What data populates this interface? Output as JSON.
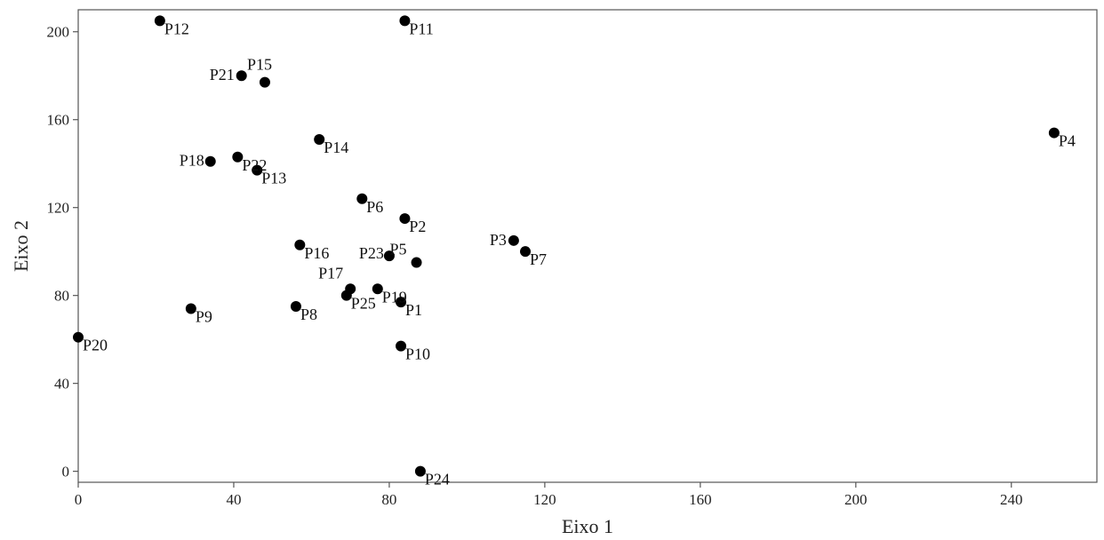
{
  "chart_data": {
    "type": "scatter",
    "xlabel": "Eixo 1",
    "ylabel": "Eixo 2",
    "xlim": [
      0,
      262
    ],
    "ylim": [
      -5,
      210
    ],
    "xticks": [
      0,
      40,
      80,
      120,
      160,
      200,
      240
    ],
    "yticks": [
      0,
      40,
      80,
      120,
      160,
      200
    ],
    "grid": false,
    "legend": "none",
    "marker_color": "#000000",
    "points": [
      {
        "label": "P1",
        "x": 83,
        "y": 77
      },
      {
        "label": "P2",
        "x": 84,
        "y": 115
      },
      {
        "label": "P3",
        "x": 112,
        "y": 105
      },
      {
        "label": "P4",
        "x": 251,
        "y": 154
      },
      {
        "label": "P5",
        "x": 87,
        "y": 95
      },
      {
        "label": "P6",
        "x": 73,
        "y": 124
      },
      {
        "label": "P7",
        "x": 115,
        "y": 100
      },
      {
        "label": "P8",
        "x": 56,
        "y": 75
      },
      {
        "label": "P9",
        "x": 29,
        "y": 74
      },
      {
        "label": "P10",
        "x": 83,
        "y": 57
      },
      {
        "label": "P11",
        "x": 84,
        "y": 205
      },
      {
        "label": "P12",
        "x": 21,
        "y": 205
      },
      {
        "label": "P13",
        "x": 46,
        "y": 137
      },
      {
        "label": "P14",
        "x": 62,
        "y": 151
      },
      {
        "label": "P15",
        "x": 48,
        "y": 177
      },
      {
        "label": "P16",
        "x": 57,
        "y": 103
      },
      {
        "label": "P17",
        "x": 70,
        "y": 83
      },
      {
        "label": "P18",
        "x": 34,
        "y": 141
      },
      {
        "label": "P19",
        "x": 77,
        "y": 83
      },
      {
        "label": "P20",
        "x": 0,
        "y": 61
      },
      {
        "label": "P21",
        "x": 42,
        "y": 180
      },
      {
        "label": "P22",
        "x": 41,
        "y": 143
      },
      {
        "label": "P23",
        "x": 80,
        "y": 98
      },
      {
        "label": "P24",
        "x": 88,
        "y": 0
      },
      {
        "label": "P25",
        "x": 69,
        "y": 80
      }
    ]
  }
}
